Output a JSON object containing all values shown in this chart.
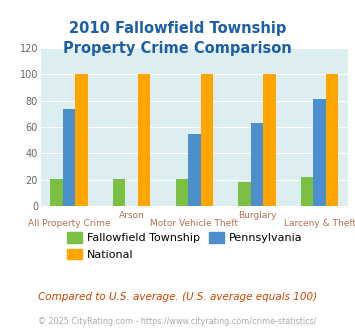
{
  "title_line1": "2010 Fallowfield Township",
  "title_line2": "Property Crime Comparison",
  "categories": [
    "All Property Crime",
    "Arson",
    "Motor Vehicle Theft",
    "Burglary",
    "Larceny & Theft"
  ],
  "x_labels_row1": [
    "",
    "Arson",
    "",
    "Burglary",
    ""
  ],
  "x_labels_row2": [
    "All Property Crime",
    "",
    "Motor Vehicle Theft",
    "",
    "Larceny & Theft"
  ],
  "fallowfield": [
    21,
    21,
    21,
    18,
    22
  ],
  "pennsylvania": [
    74,
    0,
    55,
    63,
    81
  ],
  "national": [
    100,
    100,
    100,
    100,
    100
  ],
  "colors": {
    "fallowfield": "#7BC043",
    "pennsylvania": "#4D8FCC",
    "national": "#FFA500"
  },
  "ylim": [
    0,
    120
  ],
  "yticks": [
    0,
    20,
    40,
    60,
    80,
    100,
    120
  ],
  "bg_color": "#ddeef0",
  "title_color": "#1a5fa8",
  "xlabel_row1_color": "#b07050",
  "xlabel_row2_color": "#b07050",
  "legend_labels": [
    "Fallowfield Township",
    "National",
    "Pennsylvania"
  ],
  "footer_text1": "Compared to U.S. average. (U.S. average equals 100)",
  "footer_text2": "© 2025 CityRating.com - https://www.cityrating.com/crime-statistics/",
  "footer_color1": "#cc4400",
  "footer_color2": "#aaaaaa"
}
